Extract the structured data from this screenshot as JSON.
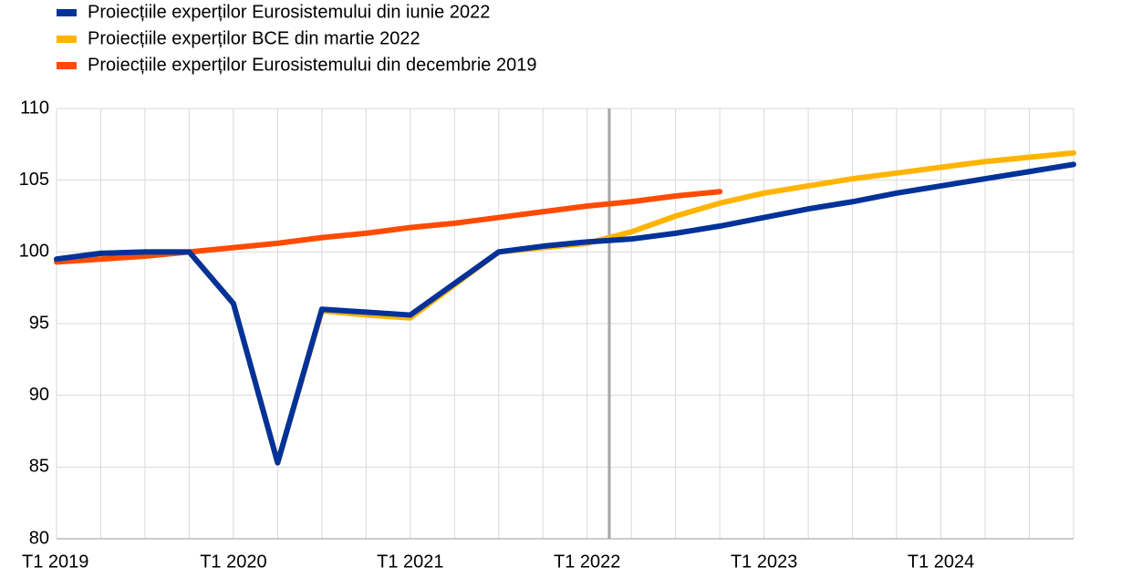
{
  "chart_data": {
    "type": "line",
    "categories": [
      "T1 2019",
      null,
      null,
      null,
      "T1 2020",
      null,
      null,
      null,
      "T1 2021",
      null,
      null,
      null,
      "T1 2022",
      null,
      null,
      null,
      "T1 2023",
      null,
      null,
      null,
      "T1 2024",
      null,
      null,
      null
    ],
    "series": [
      {
        "name": "Proiecțiile experților Eurosistemului din iunie 2022",
        "color": "#003299",
        "values": [
          99.5,
          99.9,
          100.0,
          100.0,
          96.4,
          85.3,
          96.0,
          95.8,
          95.6,
          97.8,
          100.0,
          100.4,
          100.7,
          100.9,
          101.3,
          101.8,
          102.4,
          103.0,
          103.5,
          104.1,
          104.6,
          105.1,
          105.6,
          106.1
        ]
      },
      {
        "name": "Proiecțiile experților BCE din martie 2022",
        "color": "#ffb400",
        "values": [
          99.5,
          99.9,
          100.0,
          100.0,
          96.4,
          85.3,
          95.9,
          95.6,
          95.4,
          97.7,
          100.0,
          100.3,
          100.6,
          101.4,
          102.5,
          103.4,
          104.1,
          104.6,
          105.1,
          105.5,
          105.9,
          106.3,
          106.6,
          106.9
        ]
      },
      {
        "name": "Proiecțiile experților Eurosistemului din decembrie 2019",
        "color": "#ff4b00",
        "values": [
          99.3,
          99.5,
          99.7,
          100.0,
          100.3,
          100.6,
          101.0,
          101.3,
          101.7,
          102.0,
          102.4,
          102.8,
          103.2,
          103.5,
          103.9,
          104.2,
          null,
          null,
          null,
          null,
          null,
          null,
          null,
          null
        ]
      }
    ],
    "ylim": [
      80,
      110
    ],
    "yticks": [
      80,
      85,
      90,
      95,
      100,
      105,
      110
    ],
    "grid": true,
    "legend": "top-left"
  }
}
